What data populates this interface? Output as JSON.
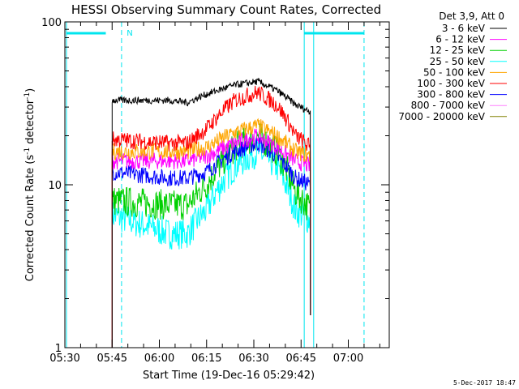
{
  "chart_data": {
    "type": "line",
    "title": "HESSI Observing Summary Count Rates, Corrected",
    "xlabel": "Start Time (19-Dec-16 05:29:42)",
    "ylabel_main": "Corrected Count Rate (s",
    "ylabel_sup1": "-1",
    "ylabel_mid": " detector",
    "ylabel_sup2": "-1",
    "ylabel_end": ")",
    "ylog": true,
    "ylim": [
      1,
      100
    ],
    "xlim": [
      "05:30",
      "07:13"
    ],
    "xticks": [
      "05:30",
      "05:45",
      "06:00",
      "06:15",
      "06:30",
      "06:45",
      "07:00"
    ],
    "yticks": [
      "1",
      "10",
      "100"
    ],
    "legend_title": "Det 3,9, Att 0",
    "marker_label": "N",
    "footer": "5-Dec-2017 18:47",
    "background": "#ffffff",
    "series": [
      {
        "name": "3 - 6 keV",
        "color": "#000000",
        "profile": [
          [
            5.75,
            33
          ],
          [
            6.05,
            33
          ],
          [
            6.15,
            32
          ],
          [
            6.25,
            36
          ],
          [
            6.4,
            41
          ],
          [
            6.52,
            43
          ],
          [
            6.62,
            38
          ],
          [
            6.72,
            31
          ],
          [
            6.8,
            28
          ]
        ]
      },
      {
        "name": "6 - 12 keV",
        "color": "#ff00ff",
        "profile": [
          [
            5.75,
            14
          ],
          [
            6.05,
            14
          ],
          [
            6.15,
            14
          ],
          [
            6.25,
            15
          ],
          [
            6.4,
            18
          ],
          [
            6.52,
            20
          ],
          [
            6.62,
            17
          ],
          [
            6.72,
            14
          ],
          [
            6.8,
            13
          ]
        ]
      },
      {
        "name": "12 - 25 keV",
        "color": "#00d000",
        "profile": [
          [
            5.75,
            8
          ],
          [
            6.05,
            7.5
          ],
          [
            6.15,
            7.5
          ],
          [
            6.25,
            10
          ],
          [
            6.4,
            17
          ],
          [
            6.52,
            20
          ],
          [
            6.62,
            16
          ],
          [
            6.72,
            9
          ],
          [
            6.8,
            7
          ]
        ]
      },
      {
        "name": "25 - 50 keV",
        "color": "#00ffff",
        "profile": [
          [
            5.75,
            6.5
          ],
          [
            6.05,
            5
          ],
          [
            6.15,
            5
          ],
          [
            6.25,
            7
          ],
          [
            6.4,
            13
          ],
          [
            6.52,
            16
          ],
          [
            6.62,
            13
          ],
          [
            6.72,
            7
          ],
          [
            6.8,
            6
          ]
        ]
      },
      {
        "name": "50 - 100 keV",
        "color": "#ffa500",
        "profile": [
          [
            5.75,
            16
          ],
          [
            6.05,
            16
          ],
          [
            6.15,
            16
          ],
          [
            6.25,
            17
          ],
          [
            6.4,
            21
          ],
          [
            6.52,
            23
          ],
          [
            6.62,
            20
          ],
          [
            6.72,
            16
          ],
          [
            6.8,
            15
          ]
        ]
      },
      {
        "name": "100 - 300 keV",
        "color": "#ff0000",
        "profile": [
          [
            5.75,
            19
          ],
          [
            6.05,
            18
          ],
          [
            6.15,
            18
          ],
          [
            6.25,
            22
          ],
          [
            6.4,
            33
          ],
          [
            6.52,
            37
          ],
          [
            6.62,
            31
          ],
          [
            6.72,
            20
          ],
          [
            6.8,
            17
          ]
        ]
      },
      {
        "name": "300 - 800 keV",
        "color": "#0000ff",
        "profile": [
          [
            5.75,
            12
          ],
          [
            6.05,
            11
          ],
          [
            6.15,
            11
          ],
          [
            6.25,
            12
          ],
          [
            6.4,
            16
          ],
          [
            6.52,
            18
          ],
          [
            6.62,
            15
          ],
          [
            6.72,
            11
          ],
          [
            6.8,
            10
          ]
        ]
      },
      {
        "name": "800 - 7000 keV",
        "color": "#ff80ff",
        "profile": []
      },
      {
        "name": "7000 - 20000 keV",
        "color": "#808000",
        "profile": []
      }
    ]
  }
}
